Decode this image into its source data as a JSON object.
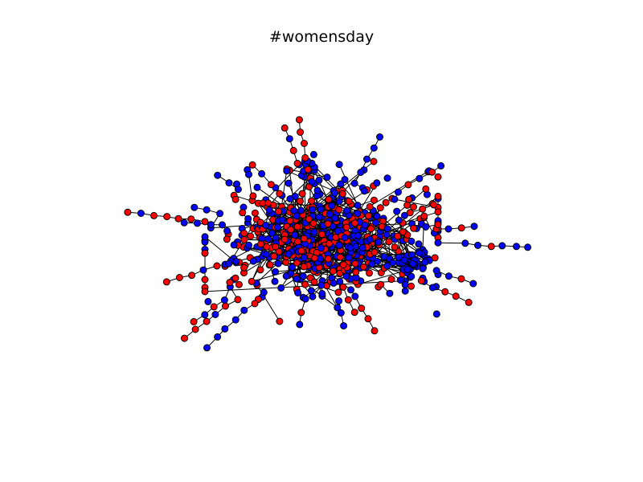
{
  "title": "#womensday",
  "graph": {
    "node_colors": [
      "#ff0000",
      "#0000ff"
    ],
    "node_edge_color": "#000000",
    "edge_color": "#000000"
  }
}
